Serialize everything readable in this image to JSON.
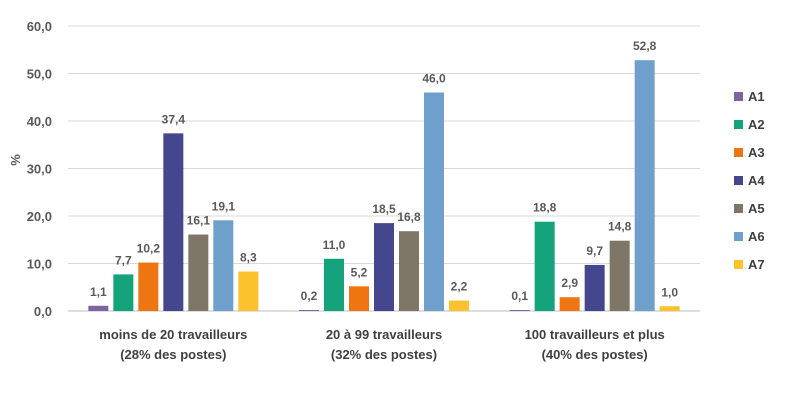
{
  "chart_data": {
    "type": "bar",
    "ylabel": "%",
    "ylim": [
      0,
      60
    ],
    "yticks": [
      "0,0",
      "10,0",
      "20,0",
      "30,0",
      "40,0",
      "50,0",
      "60,0"
    ],
    "grid": true,
    "legend_position": "right",
    "categories": [
      [
        "moins de 20 travailleurs",
        "(28% des postes)"
      ],
      [
        "20 à 99 travailleurs",
        "(32% des postes)"
      ],
      [
        "100 travailleurs et plus",
        "(40% des postes)"
      ]
    ],
    "series": [
      {
        "name": "A1",
        "color": "#8064A2",
        "values": [
          1.1,
          0.2,
          0.1
        ],
        "labels": [
          "1,1",
          "0,2",
          "0,1"
        ]
      },
      {
        "name": "A2",
        "color": "#13A27A",
        "values": [
          7.7,
          11.0,
          18.8
        ],
        "labels": [
          "7,7",
          "11,0",
          "18,8"
        ]
      },
      {
        "name": "A3",
        "color": "#EE7512",
        "values": [
          10.2,
          5.2,
          2.9
        ],
        "labels": [
          "10,2",
          "5,2",
          "2,9"
        ]
      },
      {
        "name": "A4",
        "color": "#45478E",
        "values": [
          37.4,
          18.5,
          9.7
        ],
        "labels": [
          "37,4",
          "18,5",
          "9,7"
        ]
      },
      {
        "name": "A5",
        "color": "#7E7768",
        "values": [
          16.1,
          16.8,
          14.8
        ],
        "labels": [
          "16,1",
          "16,8",
          "14,8"
        ]
      },
      {
        "name": "A6",
        "color": "#6F9FCB",
        "values": [
          19.1,
          46.0,
          52.8
        ],
        "labels": [
          "19,1",
          "46,0",
          "52,8"
        ]
      },
      {
        "name": "A7",
        "color": "#FCC22D",
        "values": [
          8.3,
          2.2,
          1.0
        ],
        "labels": [
          "8,3",
          "2,2",
          "1,0"
        ]
      }
    ]
  }
}
